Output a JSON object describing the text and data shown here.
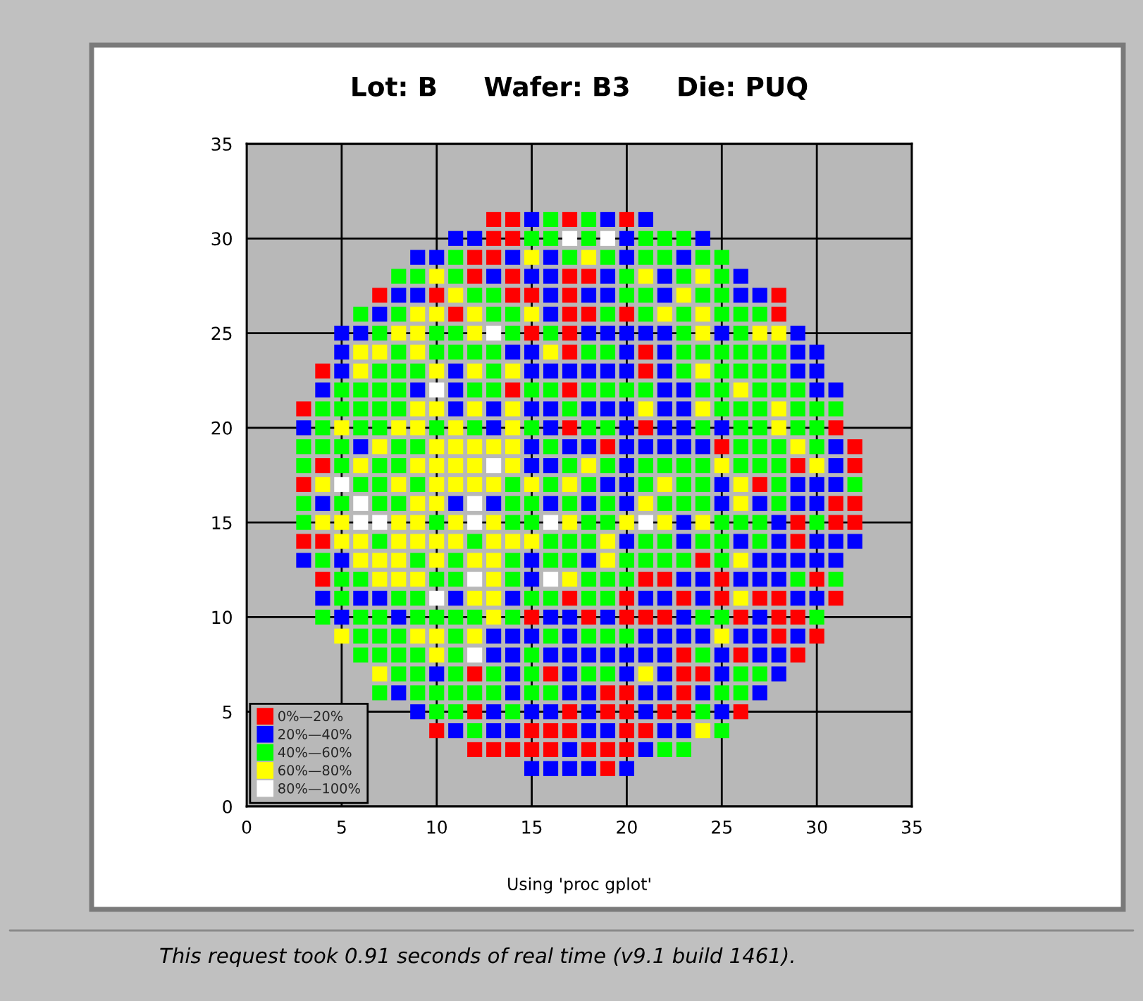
{
  "chart_data": {
    "type": "scatter",
    "title": "Lot: B     Wafer: B3     Die: PUQ",
    "annotations": [
      "Using 'proc gplot'",
      "This request took 0.91 seconds of real time (v9.1 build 1461)."
    ],
    "xlim": [
      0,
      35
    ],
    "ylim": [
      0,
      35
    ],
    "xticks": [
      0,
      5,
      10,
      15,
      20,
      25,
      30,
      35
    ],
    "yticks": [
      0,
      5,
      10,
      15,
      20,
      25,
      30,
      35
    ],
    "grid": true,
    "legend": "bottom left",
    "marker": "square",
    "series": [
      {
        "name": "0%—20%",
        "color": "#ff0000",
        "x": [
          13,
          14,
          17,
          20,
          13,
          14,
          12,
          13,
          12,
          14,
          17,
          18,
          7,
          10,
          14,
          15,
          17,
          28,
          11,
          17,
          18,
          20,
          28,
          15,
          17,
          17,
          21,
          4,
          21,
          14,
          17,
          3,
          17,
          21,
          31,
          19,
          25,
          32,
          4,
          29,
          32,
          3,
          27,
          31,
          32,
          29,
          31,
          32,
          3,
          4,
          29,
          24,
          4,
          21,
          22,
          25,
          30,
          17,
          20,
          23,
          25,
          27,
          28,
          31,
          15,
          18,
          20,
          21,
          22,
          26,
          28,
          29,
          28,
          30,
          23,
          26,
          29,
          12,
          16,
          23,
          24,
          19,
          20,
          23,
          12,
          17,
          19,
          20,
          22,
          23,
          26,
          10,
          15,
          16,
          17,
          20,
          21,
          12,
          13,
          14,
          15,
          16,
          18,
          19,
          20,
          19
        ],
        "values": [
          31,
          31,
          31,
          31,
          30,
          30,
          29,
          29,
          28,
          28,
          28,
          28,
          27,
          27,
          27,
          27,
          27,
          27,
          26,
          26,
          26,
          26,
          26,
          25,
          25,
          24,
          24,
          23,
          23,
          22,
          22,
          21,
          20,
          20,
          20,
          19,
          19,
          19,
          18,
          18,
          18,
          17,
          17,
          16,
          16,
          15,
          15,
          15,
          14,
          14,
          14,
          13,
          12,
          12,
          12,
          12,
          12,
          11,
          11,
          11,
          11,
          11,
          11,
          11,
          10,
          10,
          10,
          10,
          10,
          10,
          10,
          10,
          9,
          9,
          8,
          8,
          8,
          7,
          7,
          7,
          7,
          6,
          6,
          6,
          5,
          5,
          5,
          5,
          5,
          5,
          5,
          4,
          4,
          4,
          4,
          4,
          4,
          3,
          3,
          3,
          3,
          3,
          3,
          3,
          3,
          2
        ]
      },
      {
        "name": "20%—40%",
        "color": "#0000ff",
        "x": [
          15,
          19,
          21,
          11,
          12,
          20,
          24,
          9,
          10,
          14,
          16,
          20,
          23,
          13,
          15,
          16,
          19,
          22,
          26,
          8,
          9,
          16,
          18,
          19,
          22,
          26,
          27,
          7,
          16,
          5,
          6,
          18,
          19,
          20,
          21,
          22,
          25,
          29,
          5,
          14,
          15,
          20,
          22,
          29,
          30,
          5,
          11,
          15,
          16,
          17,
          18,
          19,
          20,
          22,
          29,
          30,
          4,
          9,
          11,
          22,
          23,
          30,
          31,
          11,
          13,
          15,
          16,
          18,
          19,
          20,
          22,
          23,
          3,
          13,
          16,
          20,
          22,
          23,
          25,
          6,
          15,
          17,
          18,
          20,
          21,
          22,
          23,
          24,
          31,
          15,
          16,
          20,
          31,
          19,
          20,
          25,
          29,
          30,
          31,
          4,
          11,
          13,
          16,
          18,
          20,
          25,
          27,
          29,
          30,
          23,
          28,
          20,
          23,
          26,
          28,
          30,
          31,
          32,
          3,
          5,
          15,
          18,
          27,
          28,
          29,
          30,
          31,
          15,
          23,
          24,
          26,
          27,
          28,
          4,
          6,
          7,
          11,
          14,
          21,
          22,
          24,
          29,
          30,
          5,
          8,
          16,
          17,
          19,
          23,
          27,
          13,
          14,
          15,
          17,
          21,
          22,
          23,
          24,
          26,
          27,
          29,
          13,
          14,
          16,
          17,
          18,
          19,
          20,
          21,
          22,
          25,
          27,
          28,
          10,
          14,
          17,
          20,
          22,
          25,
          28,
          8,
          14,
          17,
          18,
          21,
          22,
          24,
          27,
          9,
          13,
          15,
          16,
          18,
          21,
          25,
          11,
          13,
          14,
          18,
          19,
          22,
          23,
          17,
          21,
          15,
          16,
          17,
          18,
          20
        ],
        "values": [
          31,
          31,
          31,
          30,
          30,
          30,
          30,
          29,
          29,
          29,
          29,
          29,
          29,
          28,
          28,
          28,
          28,
          28,
          28,
          27,
          27,
          27,
          27,
          27,
          27,
          27,
          27,
          26,
          26,
          25,
          25,
          25,
          25,
          25,
          25,
          25,
          25,
          25,
          24,
          24,
          24,
          24,
          24,
          24,
          24,
          23,
          23,
          23,
          23,
          23,
          23,
          23,
          23,
          23,
          23,
          23,
          22,
          22,
          22,
          22,
          22,
          22,
          22,
          21,
          21,
          21,
          21,
          21,
          21,
          21,
          21,
          21,
          20,
          20,
          20,
          20,
          20,
          20,
          20,
          19,
          19,
          19,
          19,
          19,
          19,
          19,
          19,
          19,
          19,
          18,
          18,
          18,
          18,
          17,
          17,
          17,
          17,
          17,
          17,
          16,
          16,
          16,
          16,
          16,
          16,
          16,
          16,
          16,
          16,
          15,
          15,
          14,
          14,
          14,
          14,
          14,
          14,
          14,
          13,
          13,
          13,
          13,
          13,
          13,
          13,
          13,
          13,
          12,
          12,
          12,
          12,
          12,
          12,
          11,
          11,
          11,
          11,
          11,
          11,
          11,
          11,
          11,
          11,
          10,
          10,
          10,
          10,
          10,
          10,
          10,
          9,
          9,
          9,
          9,
          9,
          9,
          9,
          9,
          9,
          9,
          9,
          8,
          8,
          8,
          8,
          8,
          8,
          8,
          8,
          8,
          8,
          8,
          8,
          7,
          7,
          7,
          7,
          7,
          7,
          7,
          6,
          6,
          6,
          6,
          6,
          6,
          6,
          6,
          5,
          5,
          5,
          5,
          5,
          5,
          5,
          4,
          4,
          4,
          4,
          4,
          4,
          4,
          3,
          3,
          2,
          2,
          2,
          2,
          2
        ]
      },
      {
        "name": "40%—60%",
        "color": "#00ff00",
        "x": [
          16,
          18,
          15,
          16,
          18,
          21,
          22,
          23,
          11,
          17,
          19,
          21,
          22,
          24,
          25,
          8,
          9,
          11,
          20,
          23,
          25,
          12,
          13,
          20,
          21,
          24,
          25,
          6,
          8,
          13,
          14,
          19,
          21,
          23,
          25,
          26,
          27,
          7,
          10,
          11,
          14,
          16,
          23,
          26,
          8,
          10,
          11,
          12,
          13,
          18,
          19,
          23,
          24,
          25,
          26,
          27,
          28,
          7,
          8,
          9,
          13,
          23,
          25,
          26,
          27,
          28,
          5,
          6,
          7,
          8,
          12,
          13,
          15,
          16,
          18,
          19,
          20,
          21,
          24,
          25,
          27,
          28,
          29,
          4,
          5,
          6,
          7,
          8,
          17,
          25,
          26,
          27,
          29,
          30,
          31,
          4,
          6,
          7,
          10,
          12,
          15,
          18,
          19,
          24,
          26,
          27,
          29,
          30,
          3,
          4,
          5,
          8,
          9,
          16,
          26,
          27,
          28,
          30,
          3,
          5,
          7,
          8,
          17,
          19,
          21,
          22,
          23,
          24,
          26,
          27,
          28,
          6,
          7,
          9,
          14,
          16,
          18,
          21,
          23,
          24,
          28,
          32,
          3,
          5,
          7,
          8,
          14,
          15,
          17,
          19,
          22,
          23,
          24,
          28,
          3,
          10,
          14,
          15,
          18,
          19,
          25,
          26,
          27,
          30,
          7,
          12,
          16,
          17,
          18,
          21,
          22,
          24,
          25,
          27,
          4,
          9,
          11,
          14,
          16,
          17,
          20,
          21,
          22,
          23,
          25,
          5,
          6,
          10,
          11,
          14,
          18,
          19,
          20,
          29,
          31,
          5,
          8,
          9,
          15,
          16,
          18,
          19,
          4,
          6,
          7,
          9,
          10,
          11,
          12,
          14,
          24,
          25,
          30,
          6,
          7,
          8,
          11,
          16,
          18,
          19,
          20,
          6,
          7,
          8,
          9,
          11,
          15,
          24,
          8,
          9,
          11,
          13,
          15,
          18,
          19,
          26,
          27,
          7,
          9,
          10,
          11,
          12,
          13,
          15,
          16,
          25,
          26,
          10,
          11,
          14,
          24,
          12,
          25,
          22,
          23
        ],
        "values": [
          31,
          31,
          30,
          30,
          30,
          30,
          30,
          30,
          29,
          29,
          29,
          29,
          29,
          29,
          29,
          28,
          28,
          28,
          28,
          28,
          28,
          27,
          27,
          27,
          27,
          27,
          27,
          26,
          26,
          26,
          26,
          26,
          26,
          26,
          26,
          26,
          26,
          25,
          25,
          25,
          25,
          25,
          25,
          25,
          24,
          24,
          24,
          24,
          24,
          24,
          24,
          24,
          24,
          24,
          24,
          24,
          24,
          23,
          23,
          23,
          23,
          23,
          23,
          23,
          23,
          23,
          22,
          22,
          22,
          22,
          22,
          22,
          22,
          22,
          22,
          22,
          22,
          22,
          22,
          22,
          22,
          22,
          22,
          21,
          21,
          21,
          21,
          21,
          21,
          21,
          21,
          21,
          21,
          21,
          21,
          20,
          20,
          20,
          20,
          20,
          20,
          20,
          20,
          20,
          20,
          20,
          20,
          20,
          19,
          19,
          19,
          19,
          19,
          19,
          19,
          19,
          19,
          19,
          18,
          18,
          18,
          18,
          18,
          18,
          18,
          18,
          18,
          18,
          18,
          18,
          18,
          17,
          17,
          17,
          17,
          17,
          17,
          17,
          17,
          17,
          17,
          17,
          16,
          16,
          16,
          16,
          16,
          16,
          16,
          16,
          16,
          16,
          16,
          16,
          15,
          15,
          15,
          15,
          15,
          15,
          15,
          15,
          15,
          15,
          14,
          14,
          14,
          14,
          14,
          14,
          14,
          14,
          14,
          14,
          13,
          13,
          13,
          13,
          13,
          13,
          13,
          13,
          13,
          13,
          13,
          12,
          12,
          12,
          12,
          12,
          12,
          12,
          12,
          12,
          12,
          11,
          11,
          11,
          11,
          11,
          11,
          11,
          10,
          10,
          10,
          10,
          10,
          10,
          10,
          10,
          10,
          10,
          10,
          9,
          9,
          9,
          9,
          9,
          9,
          9,
          9,
          8,
          8,
          8,
          8,
          8,
          8,
          8,
          7,
          7,
          7,
          7,
          7,
          7,
          7,
          7,
          7,
          6,
          6,
          6,
          6,
          6,
          6,
          6,
          6,
          6,
          6,
          5,
          5,
          5,
          5,
          4,
          4,
          3,
          3
        ]
      },
      {
        "name": "60%—80%",
        "color": "#ffff00",
        "x": [
          15,
          18,
          10,
          21,
          24,
          11,
          23,
          9,
          10,
          12,
          15,
          22,
          24,
          8,
          9,
          12,
          24,
          27,
          28,
          6,
          7,
          9,
          16,
          6,
          10,
          12,
          14,
          24,
          26,
          9,
          10,
          12,
          14,
          21,
          24,
          28,
          5,
          8,
          9,
          11,
          14,
          28,
          7,
          10,
          11,
          12,
          13,
          14,
          29,
          6,
          9,
          10,
          11,
          12,
          14,
          18,
          25,
          30,
          4,
          8,
          10,
          11,
          12,
          13,
          15,
          17,
          22,
          26,
          9,
          10,
          21,
          26,
          4,
          5,
          8,
          9,
          11,
          13,
          17,
          20,
          22,
          24,
          5,
          6,
          8,
          9,
          10,
          11,
          13,
          14,
          15,
          19,
          6,
          7,
          8,
          10,
          12,
          13,
          19,
          26,
          7,
          8,
          9,
          13,
          17,
          12,
          13,
          26,
          13,
          5,
          9,
          10,
          12,
          25,
          10,
          7,
          21,
          24
        ],
        "values": [
          29,
          29,
          28,
          28,
          28,
          27,
          27,
          26,
          26,
          26,
          26,
          26,
          26,
          25,
          25,
          25,
          25,
          25,
          25,
          24,
          24,
          24,
          24,
          23,
          23,
          23,
          23,
          23,
          22,
          21,
          21,
          21,
          21,
          21,
          21,
          21,
          20,
          20,
          20,
          20,
          20,
          20,
          19,
          19,
          19,
          19,
          19,
          19,
          19,
          18,
          18,
          18,
          18,
          18,
          18,
          18,
          18,
          18,
          17,
          17,
          17,
          17,
          17,
          17,
          17,
          17,
          17,
          17,
          16,
          16,
          16,
          16,
          15,
          15,
          15,
          15,
          15,
          15,
          15,
          15,
          15,
          15,
          14,
          14,
          14,
          14,
          14,
          14,
          14,
          14,
          14,
          14,
          13,
          13,
          13,
          13,
          13,
          13,
          13,
          13,
          12,
          12,
          12,
          12,
          12,
          11,
          11,
          11,
          10,
          9,
          9,
          9,
          9,
          9,
          8,
          7,
          7,
          4
        ]
      },
      {
        "name": "80%—100%",
        "color": "#ffffff",
        "x": [
          17,
          19,
          13,
          10,
          13,
          5,
          6,
          12,
          6,
          7,
          12,
          16,
          21,
          12,
          16,
          10,
          12
        ],
        "values": [
          30,
          30,
          25,
          22,
          18,
          17,
          16,
          16,
          15,
          15,
          15,
          15,
          15,
          12,
          12,
          11,
          8
        ]
      }
    ]
  }
}
